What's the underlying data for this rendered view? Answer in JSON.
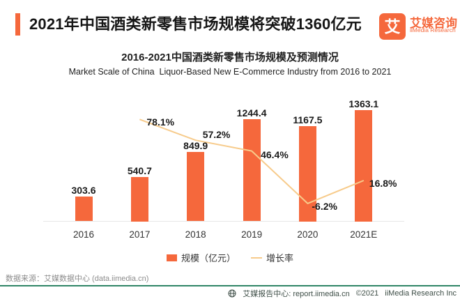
{
  "header": {
    "title": "2021年中国酒类新零售市场规模将突破1360亿元",
    "accent_color": "#F5683C",
    "logo": {
      "mark": "艾",
      "name_cn": "艾媒咨询",
      "name_en": "iiMedia Research"
    }
  },
  "chart_data": {
    "type": "bar",
    "title": "2016-2021中国酒类新零售市场规模及预测情况",
    "subtitle": "Market Scale of China  Liquor-Based New E-Commerce Industry from 2016 to 2021",
    "categories": [
      "2016",
      "2017",
      "2018",
      "2019",
      "2020",
      "2021E"
    ],
    "series": [
      {
        "name": "规模（亿元）",
        "type": "bar",
        "color": "#F5683C",
        "values": [
          303.6,
          540.7,
          849.9,
          1244.4,
          1167.5,
          1363.1
        ]
      },
      {
        "name": "增长率",
        "type": "line",
        "color": "#F7CB8B",
        "unit": "%",
        "values": [
          null,
          78.1,
          57.2,
          46.4,
          -6.2,
          16.8
        ]
      }
    ],
    "ylim": [
      0,
      1400
    ],
    "grid": false,
    "legend_position": "bottom"
  },
  "footer": {
    "source": "数据来源：艾媒数据中心 (data.iimedia.cn)",
    "report_center": "艾媒报告中心: report.iimedia.cn",
    "copyright": "©2021",
    "company": "iiMedia Research Inc",
    "divider_color": "#2F8566"
  }
}
